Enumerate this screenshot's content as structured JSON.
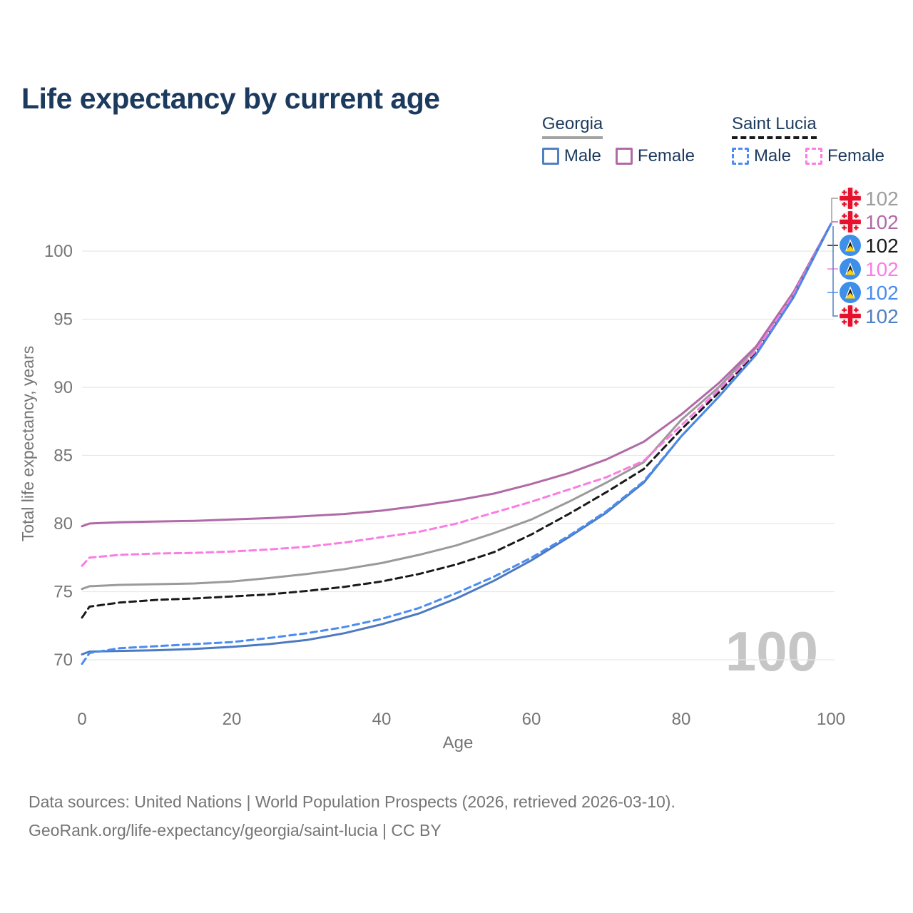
{
  "page": {
    "title": "Life expectancy by current age"
  },
  "legend": {
    "groups": [
      {
        "country": "Georgia",
        "line_style": "solid",
        "underline_color": "#a3a3a3",
        "items": [
          {
            "label": "Male",
            "color": "#5080c2",
            "style": "solid"
          },
          {
            "label": "Female",
            "color": "#b06aa6",
            "style": "solid"
          }
        ]
      },
      {
        "country": "Saint Lucia",
        "line_style": "dashed",
        "underline_color": "#1a1a1a",
        "items": [
          {
            "label": "Male",
            "color": "#4a8cf0",
            "style": "dashed"
          },
          {
            "label": "Female",
            "color": "#fb7ce3",
            "style": "dashed"
          }
        ]
      }
    ]
  },
  "chart_data": {
    "type": "line",
    "title": "Life expectancy by current age",
    "xlabel": "Age",
    "ylabel": "Total life expectancy, years",
    "x_ticks": [
      0,
      20,
      40,
      60,
      80,
      100
    ],
    "y_ticks": [
      70,
      75,
      80,
      85,
      90,
      95,
      100
    ],
    "xlim": [
      0,
      100
    ],
    "ylim": [
      67,
      103
    ],
    "grid": "horizontal",
    "watermark": "100",
    "series": [
      {
        "key": "georgia-total",
        "name": "Georgia (both sexes)",
        "country": "Georgia",
        "sex": "total",
        "style": "solid",
        "color": "#9a9a9a",
        "points": [
          [
            0,
            75.2
          ],
          [
            1,
            75.4
          ],
          [
            5,
            75.5
          ],
          [
            10,
            75.55
          ],
          [
            15,
            75.6
          ],
          [
            20,
            75.75
          ],
          [
            25,
            76.0
          ],
          [
            30,
            76.3
          ],
          [
            35,
            76.65
          ],
          [
            40,
            77.1
          ],
          [
            45,
            77.7
          ],
          [
            50,
            78.4
          ],
          [
            55,
            79.3
          ],
          [
            60,
            80.3
          ],
          [
            65,
            81.6
          ],
          [
            70,
            83.0
          ],
          [
            75,
            84.5
          ],
          [
            80,
            87.6
          ],
          [
            85,
            90.0
          ],
          [
            90,
            92.9
          ],
          [
            95,
            96.9
          ],
          [
            100,
            102
          ]
        ]
      },
      {
        "key": "georgia-female",
        "name": "Georgia female",
        "country": "Georgia",
        "sex": "female",
        "style": "solid",
        "color": "#b06aa6",
        "points": [
          [
            0,
            79.8
          ],
          [
            1,
            80.0
          ],
          [
            5,
            80.1
          ],
          [
            10,
            80.15
          ],
          [
            15,
            80.2
          ],
          [
            20,
            80.3
          ],
          [
            25,
            80.4
          ],
          [
            30,
            80.55
          ],
          [
            35,
            80.7
          ],
          [
            40,
            80.95
          ],
          [
            45,
            81.3
          ],
          [
            50,
            81.7
          ],
          [
            55,
            82.2
          ],
          [
            60,
            82.9
          ],
          [
            65,
            83.7
          ],
          [
            70,
            84.7
          ],
          [
            75,
            86.0
          ],
          [
            80,
            88.0
          ],
          [
            85,
            90.3
          ],
          [
            90,
            93.0
          ],
          [
            95,
            97.0
          ],
          [
            100,
            102
          ]
        ]
      },
      {
        "key": "saint-lucia-total",
        "name": "Saint Lucia (both sexes)",
        "country": "Saint Lucia",
        "sex": "total",
        "style": "dashed",
        "color": "#1a1a1a",
        "points": [
          [
            0,
            73.1
          ],
          [
            1,
            73.9
          ],
          [
            5,
            74.2
          ],
          [
            10,
            74.4
          ],
          [
            15,
            74.5
          ],
          [
            20,
            74.65
          ],
          [
            25,
            74.8
          ],
          [
            30,
            75.05
          ],
          [
            35,
            75.35
          ],
          [
            40,
            75.75
          ],
          [
            45,
            76.3
          ],
          [
            50,
            77.0
          ],
          [
            55,
            77.9
          ],
          [
            60,
            79.2
          ],
          [
            65,
            80.7
          ],
          [
            70,
            82.3
          ],
          [
            75,
            84.0
          ],
          [
            80,
            86.9
          ],
          [
            85,
            89.6
          ],
          [
            90,
            92.6
          ],
          [
            95,
            96.7
          ],
          [
            100,
            102
          ]
        ]
      },
      {
        "key": "saint-lucia-female",
        "name": "Saint Lucia female",
        "country": "Saint Lucia",
        "sex": "female",
        "style": "dashed",
        "color": "#fb7ce3",
        "points": [
          [
            0,
            76.9
          ],
          [
            1,
            77.5
          ],
          [
            5,
            77.7
          ],
          [
            10,
            77.8
          ],
          [
            15,
            77.85
          ],
          [
            20,
            77.95
          ],
          [
            25,
            78.1
          ],
          [
            30,
            78.3
          ],
          [
            35,
            78.6
          ],
          [
            40,
            79.0
          ],
          [
            45,
            79.4
          ],
          [
            50,
            80.0
          ],
          [
            55,
            80.8
          ],
          [
            60,
            81.6
          ],
          [
            65,
            82.5
          ],
          [
            70,
            83.4
          ],
          [
            75,
            84.6
          ],
          [
            80,
            87.2
          ],
          [
            85,
            89.8
          ],
          [
            90,
            92.7
          ],
          [
            95,
            96.8
          ],
          [
            100,
            102
          ]
        ]
      },
      {
        "key": "georgia-male",
        "name": "Georgia male",
        "country": "Georgia",
        "sex": "male",
        "style": "solid",
        "color": "#4d79c0",
        "points": [
          [
            0,
            70.4
          ],
          [
            1,
            70.6
          ],
          [
            5,
            70.65
          ],
          [
            10,
            70.7
          ],
          [
            15,
            70.8
          ],
          [
            20,
            70.95
          ],
          [
            25,
            71.15
          ],
          [
            30,
            71.45
          ],
          [
            35,
            71.95
          ],
          [
            40,
            72.6
          ],
          [
            45,
            73.4
          ],
          [
            50,
            74.5
          ],
          [
            55,
            75.8
          ],
          [
            60,
            77.3
          ],
          [
            65,
            79.0
          ],
          [
            70,
            80.8
          ],
          [
            75,
            83.0
          ],
          [
            80,
            86.4
          ],
          [
            85,
            89.3
          ],
          [
            90,
            92.4
          ],
          [
            95,
            96.6
          ],
          [
            100,
            102
          ]
        ]
      },
      {
        "key": "saint-lucia-male",
        "name": "Saint Lucia male",
        "country": "Saint Lucia",
        "sex": "male",
        "style": "dashed",
        "color": "#4a8cf0",
        "points": [
          [
            0,
            69.7
          ],
          [
            1,
            70.5
          ],
          [
            5,
            70.85
          ],
          [
            10,
            71.0
          ],
          [
            15,
            71.15
          ],
          [
            20,
            71.3
          ],
          [
            25,
            71.6
          ],
          [
            30,
            71.95
          ],
          [
            35,
            72.4
          ],
          [
            40,
            73.0
          ],
          [
            45,
            73.8
          ],
          [
            50,
            74.9
          ],
          [
            55,
            76.1
          ],
          [
            60,
            77.5
          ],
          [
            65,
            79.1
          ],
          [
            70,
            80.9
          ],
          [
            75,
            83.1
          ],
          [
            80,
            86.4
          ],
          [
            85,
            89.3
          ],
          [
            90,
            92.4
          ],
          [
            95,
            96.6
          ],
          [
            100,
            102
          ]
        ]
      }
    ],
    "end_labels": [
      {
        "flag": "georgia",
        "series": "georgia-total",
        "value": "102",
        "color": "#9e9e9e",
        "connector": "up"
      },
      {
        "flag": "georgia",
        "series": "georgia-female",
        "value": "102",
        "color": "#b06aa6",
        "connector": "tick"
      },
      {
        "flag": "saint-lucia",
        "series": "saint-lucia-total",
        "value": "102",
        "color": "#1a1a1a",
        "connector": "tick"
      },
      {
        "flag": "saint-lucia",
        "series": "saint-lucia-female",
        "value": "102",
        "color": "#fb7ce3",
        "connector": "tick"
      },
      {
        "flag": "saint-lucia",
        "series": "saint-lucia-male",
        "value": "102",
        "color": "#4a8cf0",
        "connector": "tick"
      },
      {
        "flag": "georgia",
        "series": "georgia-male",
        "value": "102",
        "color": "#5080c2",
        "connector": "down"
      }
    ]
  },
  "footer": {
    "line1": "Data sources: United Nations | World Population Prospects (2026, retrieved 2026-03-10).",
    "line2": "GeoRank.org/life-expectancy/georgia/saint-lucia | CC BY"
  }
}
